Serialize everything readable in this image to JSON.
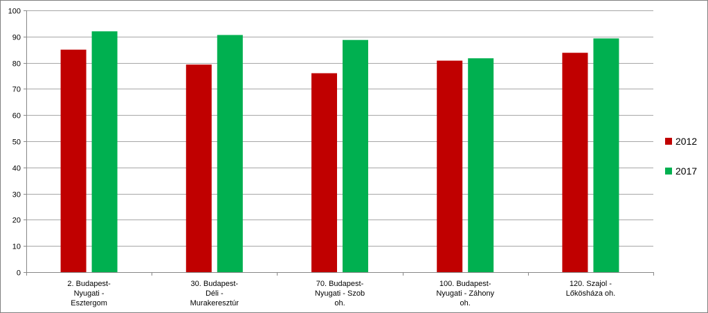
{
  "chart_data": {
    "type": "bar",
    "categories": [
      [
        "2. Budapest-",
        "Nyugati -",
        "Esztergom"
      ],
      [
        "30. Budapest-",
        "Déli -",
        "Murakeresztúr"
      ],
      [
        "70. Budapest-",
        "Nyugati - Szob",
        "oh."
      ],
      [
        "100. Budapest-",
        "Nyugati - Záhony",
        "oh."
      ],
      [
        "120. Szajol -",
        "Lőkösháza oh."
      ]
    ],
    "series": [
      {
        "name": "2012",
        "color": "#c00000",
        "values": [
          85,
          79.3,
          76,
          80.8,
          83.8
        ]
      },
      {
        "name": "2017",
        "color": "#00b050",
        "values": [
          92,
          90.6,
          88.7,
          81.7,
          89.3
        ]
      }
    ],
    "ylim": [
      0,
      100
    ],
    "yticks": [
      0,
      10,
      20,
      30,
      40,
      50,
      60,
      70,
      80,
      90,
      100
    ],
    "grid": true,
    "legend_position": "right"
  }
}
